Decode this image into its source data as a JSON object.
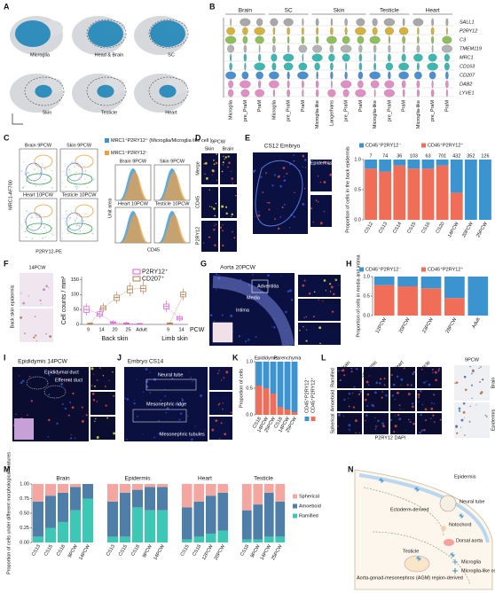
{
  "panel_letters": [
    "A",
    "B",
    "C",
    "D",
    "E",
    "F",
    "G",
    "H",
    "I",
    "J",
    "K",
    "L",
    "M",
    "N"
  ],
  "panels": {
    "A": {
      "clusters": [
        "Microglia",
        "Head & Brain",
        "SC",
        "Skin",
        "Testicle",
        "Heart"
      ]
    },
    "B": {
      "tissues": [
        "Brain",
        "SC",
        "Skin",
        "Testicle",
        "Heart"
      ],
      "genes": [
        "SALL1",
        "P2RY12",
        "C3",
        "TMEM119",
        "MRC1",
        "CD163",
        "CD207",
        "DAB2",
        "LYVE1"
      ],
      "columns": [
        [
          "Microglia",
          "pre_PraM",
          "PraM"
        ],
        [
          "Microglia",
          "pre_PraM",
          "PraM"
        ],
        [
          "Microglia-like",
          "Langerhans",
          "pre_PraM",
          "PraM"
        ],
        [
          "Microglia-like",
          "pre_PraM",
          "PraM"
        ],
        [
          "Microglia-like",
          "pre_PraM",
          "PraM"
        ]
      ]
    },
    "C": {
      "plots": [
        "Brain 9PCW",
        "Skin 9PCW",
        "Heart 10PCW",
        "Testicle 10PCW"
      ],
      "flow_x": "P2RY12-PE",
      "flow_y": "MRC1-AF700",
      "hist_x": "CD45",
      "hist_y": "Unit area",
      "legend": [
        "MRC1⁺P2RY12⁺ (Microglia/Microglia like cell )",
        "MRC1⁺P2RY12⁻"
      ]
    },
    "D": {
      "title": "9PCW",
      "columns": [
        "Skin",
        "Brain"
      ],
      "rows": [
        "Merge",
        "CD45",
        "P2RY12"
      ]
    },
    "E": {
      "title": "CS12 Embryo",
      "inset": "Epidermis"
    },
    "F": {
      "title": "14PCW",
      "side": "Back skin epidermis"
    },
    "G": {
      "title": "Aorta 20PCW",
      "layers": [
        "Adventitia",
        "Media",
        "Intima"
      ],
      "channels": [
        "Merge",
        "P2RY12",
        "CD45"
      ]
    },
    "I": {
      "title": "Epididymis 14PCW",
      "labels": [
        "Epididymal duct",
        "Efferent duct"
      ],
      "channels": [
        "Merge",
        "P2RY12",
        "CD45"
      ]
    },
    "J": {
      "title": "Embryo CS14",
      "labels": [
        "Neural tube",
        "Mesonephric ridge",
        "Mesonephric tubules"
      ]
    },
    "L": {
      "tissues": [
        "Brain",
        "Epidermis",
        "Heart",
        "Testicle"
      ],
      "morphologies": [
        "Ramified",
        "Amoeboid",
        "Spherical"
      ],
      "stain": "P2RY12 DAPI",
      "side_title": "9PCW",
      "side_rows": [
        "Brain",
        "Epidermis"
      ]
    },
    "N": {
      "labels": [
        "Epidermis",
        "Neural tube",
        "Ectoderm-derived",
        "Notochord",
        "Dorsal aorta",
        "Testicle",
        "Microglia",
        "Microglia-like cell",
        "Aorta-gonad-mesonephros (AGM) region-derived"
      ]
    }
  },
  "chart_data": [
    {
      "type": "bar",
      "stacked": true,
      "categories": [
        "CS12",
        "CS13",
        "CS14",
        "CS15",
        "CS16",
        "CS20",
        "14PCW",
        "20PCW",
        "25PCW"
      ],
      "series": [
        {
          "name": "CD45⁺P2RY12⁻",
          "color": "#3b94cf",
          "values": [
            0.15,
            0.2,
            0.1,
            0.15,
            0.15,
            0.1,
            0.55,
            1,
            1
          ]
        },
        {
          "name": "CD45⁺P2RY12⁺",
          "color": "#f06e58",
          "values": [
            0.85,
            0.8,
            0.9,
            0.85,
            0.85,
            0.9,
            0.45,
            0,
            0
          ]
        }
      ],
      "counts": [
        7,
        74,
        36,
        103,
        63,
        701,
        432,
        352,
        126
      ],
      "ylim": [
        0,
        1
      ],
      "yticks": [
        {
          "value": 0,
          "label": "0.0"
        },
        0.5,
        {
          "value": 1,
          "label": "1.0"
        }
      ],
      "ylabel": "Proportion of cells in the back epidermis"
    },
    {
      "type": "box",
      "groups": [
        {
          "name": "Back skin",
          "categories": [
            "9",
            "14",
            "20",
            "25",
            "Adult"
          ]
        },
        {
          "name": "Limb skin",
          "categories": [
            "9",
            "14"
          ]
        }
      ],
      "series": [
        {
          "name": "P2RY12⁺",
          "color": "#e05ad8",
          "boxes": [
            [
              [
                30,
                40,
                50,
                60,
                70
              ],
              [
                20,
                28,
                35,
                42,
                55
              ],
              [
                2,
                4,
                6,
                9,
                14
              ],
              [
                1,
                2,
                3,
                5,
                8
              ],
              [
                0,
                1,
                2,
                3,
                5
              ]
            ],
            [
              [
                40,
                52,
                60,
                68,
                80
              ],
              [
                10,
                15,
                20,
                26,
                32
              ]
            ]
          ]
        },
        {
          "name": "CD207⁺",
          "color": "#b07a4a",
          "boxes": [
            [
              [
                0,
                1,
                2,
                4,
                6
              ],
              [
                40,
                48,
                55,
                62,
                72
              ],
              [
                70,
                80,
                90,
                98,
                110
              ],
              [
                95,
                105,
                118,
                128,
                140
              ],
              [
                100,
                110,
                120,
                130,
                145
              ]
            ],
            [
              [
                0,
                1,
                3,
                5,
                8
              ],
              [
                80,
                92,
                100,
                108,
                120
              ]
            ]
          ]
        }
      ],
      "ylim": [
        0,
        160
      ],
      "yticks": [
        0,
        50,
        100,
        150
      ],
      "ylabel": "Cell counts / mm²",
      "xlabel": "PCW"
    },
    {
      "type": "bar",
      "stacked": true,
      "categories": [
        "12PCW",
        "20PCW",
        "23PCW",
        "28PCW",
        "Adult"
      ],
      "series": [
        {
          "name": "CD45⁺P2RY12⁻",
          "color": "#3b94cf",
          "values": [
            0.22,
            0.25,
            0.3,
            0.55,
            1
          ]
        },
        {
          "name": "CD45⁺P2RY12⁺",
          "color": "#f06e58",
          "values": [
            0.78,
            0.75,
            0.7,
            0.45,
            0
          ]
        }
      ],
      "ylim": [
        0,
        1
      ],
      "yticks": [
        {
          "value": 0,
          "label": "0.0"
        },
        0.5,
        {
          "value": 1,
          "label": "1.0"
        }
      ],
      "ylabel": "Proportion of cells in media and intima"
    },
    {
      "type": "bar",
      "stacked": true,
      "group_labels": [
        "Epididymis",
        "Parenchyma"
      ],
      "categories": [
        "CS18",
        "14PCW",
        "25PCW",
        "CS18",
        "14PCW",
        "25PCW"
      ],
      "series": [
        {
          "name": "CD45⁺P2RY12⁻",
          "color": "#3b94cf",
          "values": [
            0.45,
            0.5,
            0.6,
            0.85,
            0.9,
            0.95
          ]
        },
        {
          "name": "CD45⁺P2RY12⁺",
          "color": "#f06e58",
          "values": [
            0.55,
            0.5,
            0.4,
            0.15,
            0.1,
            0.05
          ]
        }
      ],
      "ylim": [
        0,
        1
      ],
      "yticks": [
        {
          "value": 0,
          "label": "0.0"
        },
        0.5,
        {
          "value": 1,
          "label": "1.0"
        }
      ],
      "ylabel": "Proportion of cells"
    },
    {
      "type": "bar",
      "stacked": true,
      "title": "Brain",
      "categories": [
        "CS13",
        "CS15",
        "CS18",
        "9PCW",
        "14PCW"
      ],
      "series": [
        {
          "name": "Spherical",
          "color": "#f4a6a0",
          "values": [
            0.3,
            0.2,
            0.15,
            0.05,
            0
          ]
        },
        {
          "name": "Amoeboid",
          "color": "#4f7fa8",
          "values": [
            0.6,
            0.55,
            0.5,
            0.4,
            0.25
          ]
        },
        {
          "name": "Ramified",
          "color": "#3cc8b4",
          "values": [
            0.1,
            0.25,
            0.35,
            0.55,
            0.75
          ]
        }
      ],
      "ylim": [
        0,
        1
      ],
      "yticks": [
        {
          "value": 0,
          "label": "0.00"
        },
        0.25,
        {
          "value": 0.5,
          "label": "0.50"
        },
        0.75,
        {
          "value": 1,
          "label": "1.00"
        }
      ],
      "ylabel": "Proportion of cells under different morphological features"
    },
    {
      "type": "bar",
      "stacked": true,
      "title": "Epidermis",
      "categories": [
        "CS13",
        "CS15",
        "CS18",
        "9PCW",
        "14PCW"
      ],
      "series": [
        {
          "name": "Spherical",
          "color": "#f4a6a0",
          "values": [
            0.3,
            0.15,
            0.1,
            0.05,
            0.05
          ]
        },
        {
          "name": "Amoeboid",
          "color": "#4f7fa8",
          "values": [
            0.6,
            0.75,
            0.3,
            0.4,
            0.4
          ]
        },
        {
          "name": "Ramified",
          "color": "#3cc8b4",
          "values": [
            0.1,
            0.1,
            0.6,
            0.55,
            0.55
          ]
        }
      ],
      "ylim": [
        0,
        1
      ]
    },
    {
      "type": "bar",
      "stacked": true,
      "title": "Heart",
      "categories": [
        "CS15",
        "CS18",
        "12PCW",
        "20PCW"
      ],
      "series": [
        {
          "name": "Spherical",
          "color": "#f4a6a0",
          "values": [
            0.4,
            0.3,
            0.2,
            0.15
          ]
        },
        {
          "name": "Amoeboid",
          "color": "#4f7fa8",
          "values": [
            0.55,
            0.6,
            0.65,
            0.65
          ]
        },
        {
          "name": "Ramified",
          "color": "#3cc8b4",
          "values": [
            0.05,
            0.1,
            0.15,
            0.2
          ]
        }
      ],
      "ylim": [
        0,
        1
      ]
    },
    {
      "type": "bar",
      "stacked": true,
      "title": "Testicle",
      "categories": [
        "CS18",
        "9PCW",
        "14PCW",
        "25PCW"
      ],
      "series": [
        {
          "name": "Spherical",
          "color": "#f4a6a0",
          "values": [
            0.45,
            0.35,
            0.15,
            0.3
          ]
        },
        {
          "name": "Amoeboid",
          "color": "#4f7fa8",
          "values": [
            0.5,
            0.6,
            0.75,
            0.6
          ]
        },
        {
          "name": "Ramified",
          "color": "#3cc8b4",
          "values": [
            0.05,
            0.05,
            0.1,
            0.1
          ]
        }
      ],
      "ylim": [
        0,
        1
      ]
    }
  ]
}
